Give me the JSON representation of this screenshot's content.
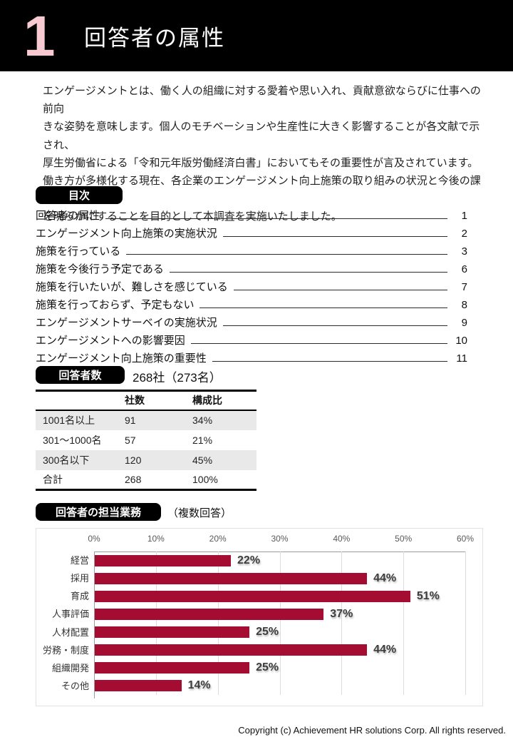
{
  "header": {
    "number": "1",
    "title": "回答者の属性"
  },
  "intro": {
    "text": "エンゲージメントとは、働く人の組織に対する愛着や思い入れ、貢献意欲ならびに仕事への前向\nきな姿勢を意味します。個人のモチベーションや生産性に大きく影響することが各文献で示され、\n厚生労働省による「令和元年版労働経済白書」においてもその重要性が言及されています。\n働き方が多様化する現在、各企業のエンゲージメント向上施策の取り組みの状況と今後の課題\nを明らかにすることを目的として本調査を実施いたしました。"
  },
  "toc": {
    "badge": "目次",
    "items": [
      {
        "title": "回答者の属性",
        "page": "1"
      },
      {
        "title": "エンゲージメント向上施策の実施状況",
        "page": "2"
      },
      {
        "title": "施策を行っている",
        "page": "3"
      },
      {
        "title": "施策を今後行う予定である",
        "page": "6"
      },
      {
        "title": "施策を行いたいが、難しさを感じている",
        "page": "7"
      },
      {
        "title": "施策を行っておらず、予定もない",
        "page": "8"
      },
      {
        "title": "エンゲージメントサーベイの実施状況",
        "page": "9"
      },
      {
        "title": "エンゲージメントへの影響要因",
        "page": "10"
      },
      {
        "title": "エンゲージメント向上施策の重要性",
        "page": "11"
      }
    ]
  },
  "respondents": {
    "badge": "回答者数",
    "summary": "268社（273名）",
    "table": {
      "headers": {
        "count": "社数",
        "ratio": "構成比"
      },
      "rows": [
        {
          "label": "1001名以上",
          "count": "91",
          "ratio": "34%"
        },
        {
          "label": "301～1000名",
          "count": "57",
          "ratio": "21%"
        },
        {
          "label": "300名以下",
          "count": "120",
          "ratio": "45%"
        },
        {
          "label": "合計",
          "count": "268",
          "ratio": "100%"
        }
      ]
    }
  },
  "duties": {
    "badge": "回答者の担当業務",
    "note": "（複数回答）"
  },
  "chart_data": {
    "type": "bar",
    "orientation": "horizontal",
    "title": "回答者の担当業務（複数回答）",
    "categories": [
      "経営",
      "採用",
      "育成",
      "人事評価",
      "人材配置",
      "労務・制度",
      "組織開発",
      "その他"
    ],
    "values": [
      22,
      44,
      51,
      37,
      25,
      44,
      25,
      14
    ],
    "unit": "%",
    "xlim": [
      0,
      60
    ],
    "ticks": [
      "0%",
      "10%",
      "20%",
      "30%",
      "40%",
      "50%",
      "60%"
    ],
    "grid": true,
    "bar_color": "#A40C32"
  },
  "footer": {
    "copyright": "Copyright (c)  Achievement HR solutions Corp. All rights reserved."
  },
  "colors": {
    "accent": "#A40C32",
    "header_bg": "#000000",
    "header_number": "#F7C9D0",
    "row_shade": "#E9E9E9"
  }
}
